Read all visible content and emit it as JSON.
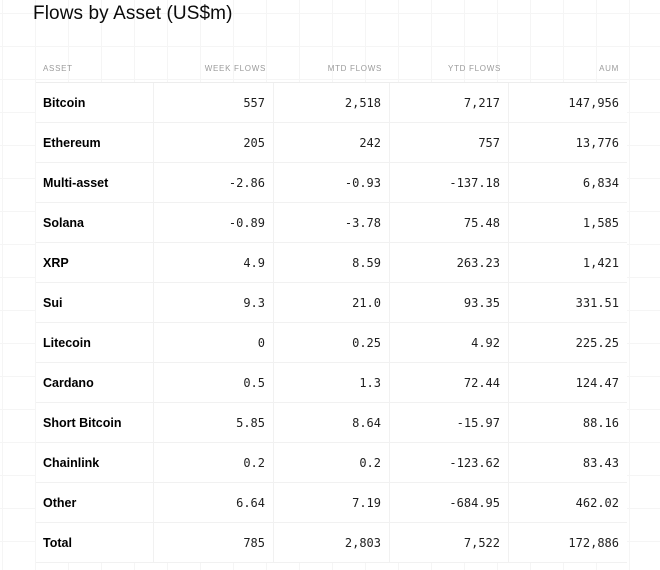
{
  "title": "Flows by Asset (US$m)",
  "table": {
    "columns": [
      "ASSET",
      "WEEK FLOWS",
      "MTD FLOWS",
      "YTD FLOWS",
      "AUM"
    ],
    "rows": [
      {
        "asset": "Bitcoin",
        "values": [
          "557",
          "2,518",
          "7,217",
          "147,956"
        ]
      },
      {
        "asset": "Ethereum",
        "values": [
          "205",
          "242",
          "757",
          "13,776"
        ]
      },
      {
        "asset": "Multi-asset",
        "values": [
          "-2.86",
          "-0.93",
          "-137.18",
          "6,834"
        ]
      },
      {
        "asset": "Solana",
        "values": [
          "-0.89",
          "-3.78",
          "75.48",
          "1,585"
        ]
      },
      {
        "asset": "XRP",
        "values": [
          "4.9",
          "8.59",
          "263.23",
          "1,421"
        ]
      },
      {
        "asset": "Sui",
        "values": [
          "9.3",
          "21.0",
          "93.35",
          "331.51"
        ]
      },
      {
        "asset": "Litecoin",
        "values": [
          "0",
          "0.25",
          "4.92",
          "225.25"
        ]
      },
      {
        "asset": "Cardano",
        "values": [
          "0.5",
          "1.3",
          "72.44",
          "124.47"
        ]
      },
      {
        "asset": "Short Bitcoin",
        "values": [
          "5.85",
          "8.64",
          "-15.97",
          "88.16"
        ]
      },
      {
        "asset": "Chainlink",
        "values": [
          "0.2",
          "0.2",
          "-123.62",
          "83.43"
        ]
      },
      {
        "asset": "Other",
        "values": [
          "6.64",
          "7.19",
          "-684.95",
          "462.02"
        ]
      },
      {
        "asset": "Total",
        "values": [
          "785",
          "2,803",
          "7,522",
          "172,886"
        ]
      }
    ]
  },
  "chart_data": {
    "type": "table",
    "title": "Flows by Asset (US$m)",
    "columns": [
      "ASSET",
      "WEEK FLOWS",
      "MTD FLOWS",
      "YTD FLOWS",
      "AUM"
    ],
    "rows": [
      [
        "Bitcoin",
        557,
        2518,
        7217,
        147956
      ],
      [
        "Ethereum",
        205,
        242,
        757,
        13776
      ],
      [
        "Multi-asset",
        -2.86,
        -0.93,
        -137.18,
        6834
      ],
      [
        "Solana",
        -0.89,
        -3.78,
        75.48,
        1585
      ],
      [
        "XRP",
        4.9,
        8.59,
        263.23,
        1421
      ],
      [
        "Sui",
        9.3,
        21.0,
        93.35,
        331.51
      ],
      [
        "Litecoin",
        0,
        0.25,
        4.92,
        225.25
      ],
      [
        "Cardano",
        0.5,
        1.3,
        72.44,
        124.47
      ],
      [
        "Short Bitcoin",
        5.85,
        8.64,
        -15.97,
        88.16
      ],
      [
        "Chainlink",
        0.2,
        0.2,
        -123.62,
        83.43
      ],
      [
        "Other",
        6.64,
        7.19,
        -684.95,
        462.02
      ],
      [
        "Total",
        785,
        2803,
        7522,
        172886
      ]
    ],
    "colors": {
      "title_text": "#0b0b0b",
      "header_text": "#9b9b9b",
      "cell_text": "#1f1f1f",
      "row_border": "#f1f1f1",
      "grid_background_line": "#f5f5f5"
    }
  }
}
